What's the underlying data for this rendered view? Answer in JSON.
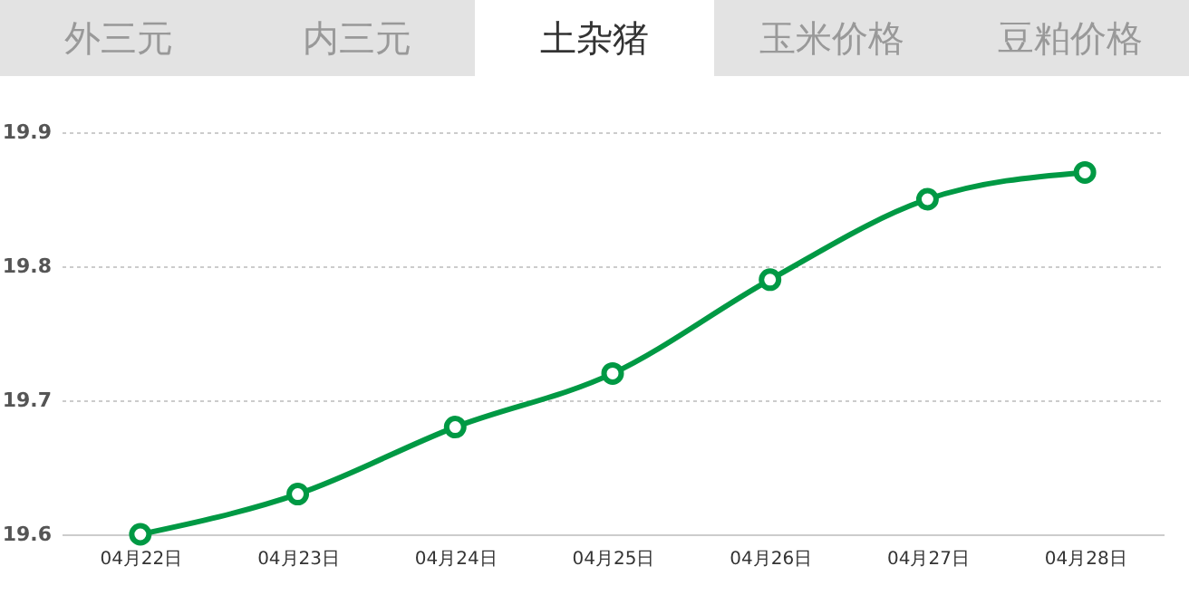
{
  "chart_data": {
    "type": "line",
    "title": "土杂猪",
    "annotations": [
      "外三元",
      "内三元",
      "玉米价格",
      "豆粕价格"
    ],
    "categories": [
      "04月22日",
      "04月23日",
      "04月24日",
      "04月25日",
      "04月26日",
      "04月27日",
      "04月28日"
    ],
    "series": [
      {
        "color": "#009944",
        "values": [
          19.6,
          19.63,
          19.68,
          19.72,
          19.79,
          19.85,
          19.87
        ]
      }
    ],
    "ylim": [
      19.6,
      19.9
    ],
    "yticks": [
      19.6,
      19.7,
      19.8,
      19.9
    ],
    "grid": "y",
    "marker": "circle",
    "line_style": "solid"
  }
}
